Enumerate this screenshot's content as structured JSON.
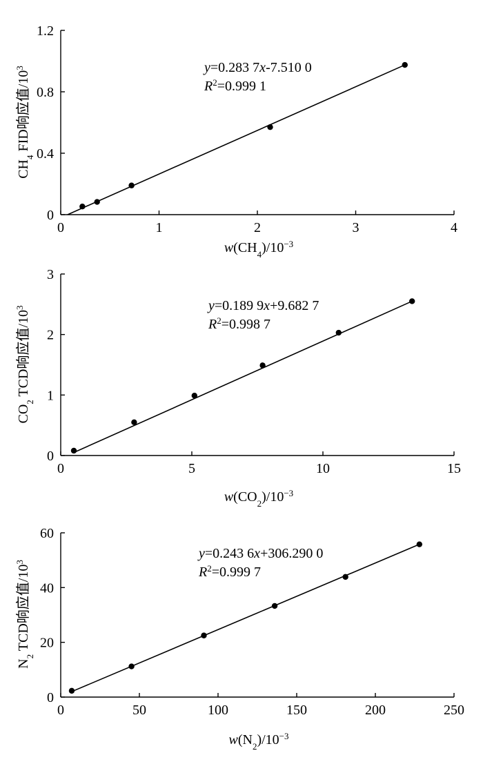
{
  "chart_data": [
    {
      "type": "scatter",
      "name": "ch4",
      "series": [
        {
          "name": "CH4",
          "x": [
            0.22,
            0.37,
            0.72,
            2.13,
            3.5
          ],
          "y": [
            0.053,
            0.083,
            0.19,
            0.57,
            0.975
          ]
        }
      ],
      "fit": {
        "x": [
          0.07,
          3.5
        ],
        "y": [
          0.0,
          0.975
        ]
      },
      "xlim": [
        0,
        4
      ],
      "ylim": [
        0,
        1.2
      ],
      "xticks": [
        0,
        1,
        2,
        3,
        4
      ],
      "yticks": [
        0,
        0.4,
        0.8,
        1.2
      ],
      "xtick_labels": [
        "0",
        "1",
        "2",
        "3",
        "4"
      ],
      "ytick_labels": [
        "0",
        "0.4",
        "0.8",
        "1.2"
      ],
      "xlabel": {
        "italic": "w",
        "pre": "(CH",
        "sub": "4",
        "post": ")/10",
        "sup": "−3"
      },
      "ylabel": {
        "pre": "CH",
        "sub": "4",
        "mid": " FID响应值/10",
        "sup": "3"
      },
      "equation": {
        "v1": "y",
        "t1": "=0.283 7",
        "v2": "x",
        "t2": "-7.510 0"
      },
      "r2": {
        "v": "R",
        "sup": "2",
        "t": "=0.999 1"
      }
    },
    {
      "type": "scatter",
      "name": "co2",
      "series": [
        {
          "name": "CO2",
          "x": [
            0.5,
            2.8,
            5.1,
            7.7,
            10.6,
            13.4
          ],
          "y": [
            0.08,
            0.55,
            0.99,
            1.49,
            2.03,
            2.55
          ]
        }
      ],
      "fit": {
        "x": [
          0.5,
          13.4
        ],
        "y": [
          0.05,
          2.55
        ]
      },
      "xlim": [
        0,
        15
      ],
      "ylim": [
        0,
        3
      ],
      "xticks": [
        0,
        5,
        10,
        15
      ],
      "yticks": [
        0,
        1,
        2,
        3
      ],
      "xtick_labels": [
        "0",
        "5",
        "10",
        "15"
      ],
      "ytick_labels": [
        "0",
        "1",
        "2",
        "3"
      ],
      "xlabel": {
        "italic": "w",
        "pre": "(CO",
        "sub": "2",
        "post": ")/10",
        "sup": "−3"
      },
      "ylabel": {
        "pre": "CO",
        "sub": "2",
        "mid": " TCD响应值/10",
        "sup": "3"
      },
      "equation": {
        "v1": "y",
        "t1": "=0.189 9",
        "v2": "x",
        "t2": "+9.682 7"
      },
      "r2": {
        "v": "R",
        "sup": "2",
        "t": "=0.998 7"
      }
    },
    {
      "type": "scatter",
      "name": "n2",
      "series": [
        {
          "name": "N2",
          "x": [
            7,
            45,
            91,
            136,
            181,
            228
          ],
          "y": [
            2.3,
            11.2,
            22.5,
            33.3,
            43.9,
            55.8
          ]
        }
      ],
      "fit": {
        "x": [
          7,
          228
        ],
        "y": [
          2.0,
          55.8
        ]
      },
      "xlim": [
        0,
        250
      ],
      "ylim": [
        0,
        60
      ],
      "xticks": [
        0,
        50,
        100,
        150,
        200,
        250
      ],
      "yticks": [
        0,
        20,
        40,
        60
      ],
      "xtick_labels": [
        "0",
        "50",
        "100",
        "150",
        "200",
        "250"
      ],
      "ytick_labels": [
        "0",
        "20",
        "40",
        "60"
      ],
      "xlabel": {
        "italic": "w",
        "pre": "(N",
        "sub": "2",
        "post": ")/10",
        "sup": "−3"
      },
      "ylabel": {
        "pre": "N",
        "sub": "2",
        "mid": " TCD响应值/10",
        "sup": "3"
      },
      "equation": {
        "v1": "y",
        "t1": "=0.243 6",
        "v2": "x",
        "t2": "+306.290 0"
      },
      "r2": {
        "v": "R",
        "sup": "2",
        "t": "=0.999 7"
      }
    }
  ]
}
